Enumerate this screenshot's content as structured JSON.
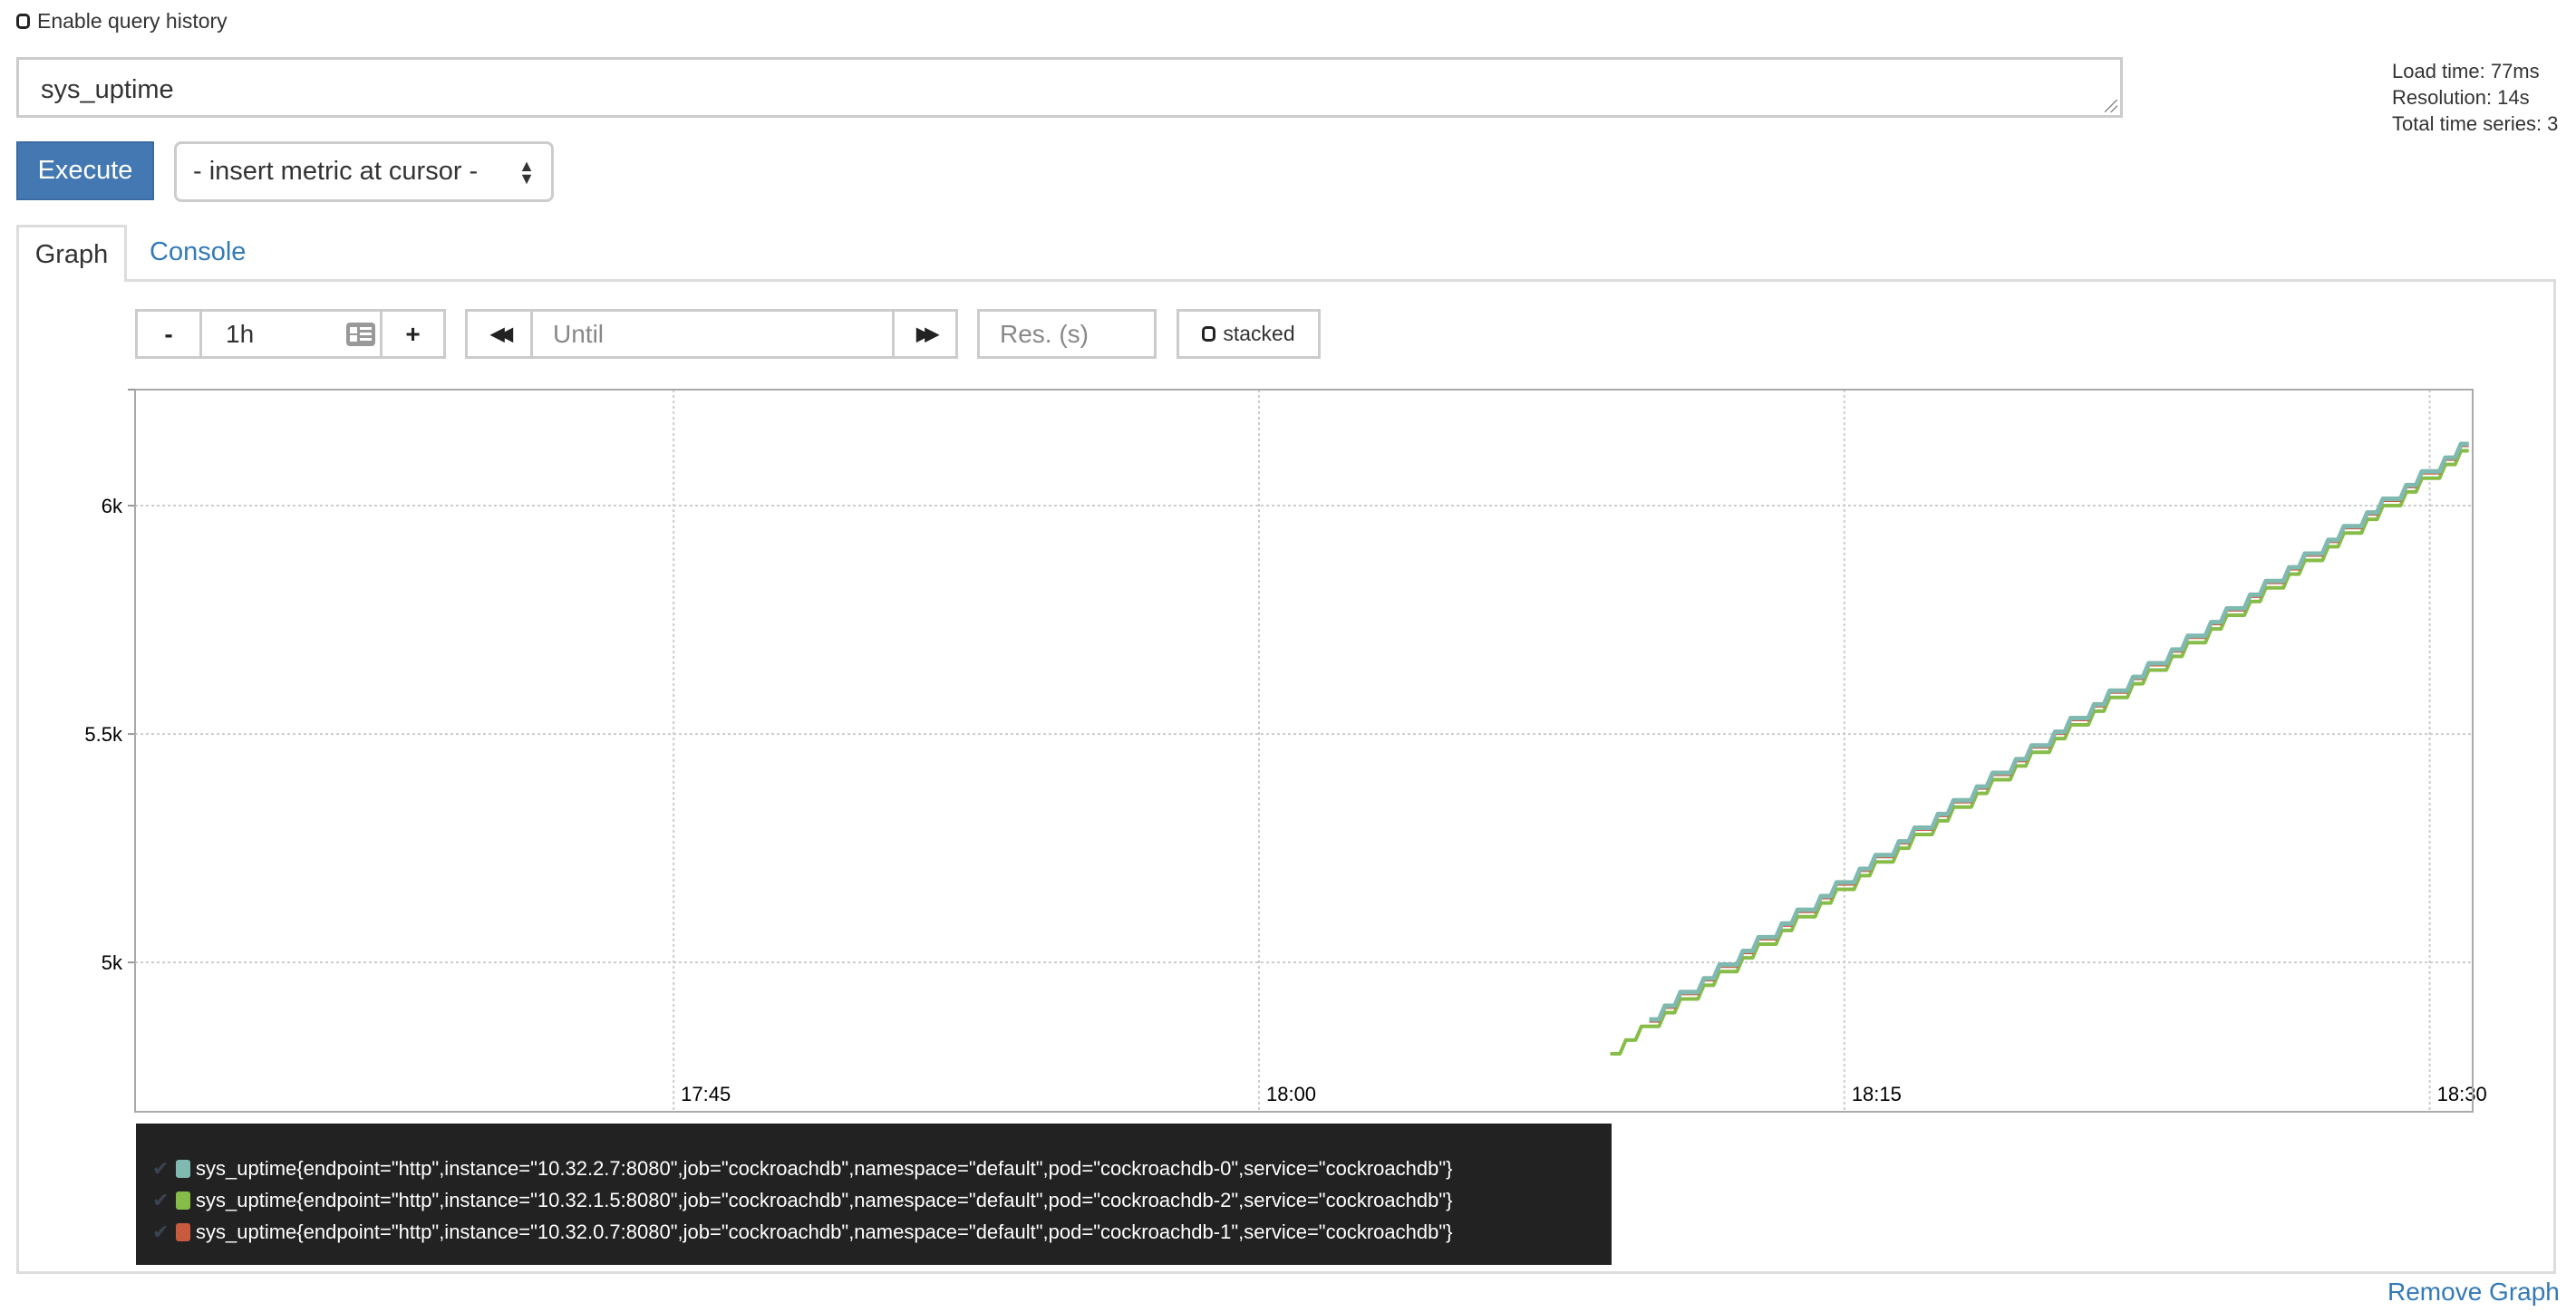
{
  "query_history": {
    "label": "Enable query history",
    "checked": false
  },
  "expression": {
    "value": "sys_uptime"
  },
  "stats": {
    "load_time": "Load time: 77ms",
    "resolution": "Resolution: 14s",
    "total_series": "Total time series: 3"
  },
  "execute_label": "Execute",
  "metric_select": {
    "selected": "- insert metric at cursor -"
  },
  "tabs": [
    {
      "label": "Graph",
      "active": true
    },
    {
      "label": "Console",
      "active": false
    }
  ],
  "controls": {
    "minus": "-",
    "range": "1h",
    "plus": "+",
    "back": "◀◀",
    "until_placeholder": "Until",
    "forward": "▶▶",
    "res_placeholder": "Res. (s)",
    "stacked_label": "stacked"
  },
  "remove_graph": "Remove Graph",
  "chart_data": {
    "type": "line",
    "xlim": [
      "17:31",
      "18:31"
    ],
    "ylim": [
      4673,
      6254
    ],
    "x_ticks": [
      "17:45",
      "18:00",
      "18:15",
      "18:30"
    ],
    "y_ticks": [
      {
        "value": 5000,
        "label": "5k"
      },
      {
        "value": 5500,
        "label": "5.5k"
      },
      {
        "value": 6000,
        "label": "6k"
      }
    ],
    "grid": true,
    "legend_placement": "bottom",
    "series": [
      {
        "name": "sys_uptime{endpoint=\"http\",instance=\"10.32.2.7:8080\",job=\"cockroachdb\",namespace=\"default\",pod=\"cockroachdb-0\",service=\"cockroachdb\"}",
        "color": "#7fb9b0",
        "x": [
          "18:10",
          "18:11",
          "18:12",
          "18:13",
          "18:14",
          "18:15",
          "18:16",
          "18:17",
          "18:18",
          "18:19",
          "18:20",
          "18:21",
          "18:22",
          "18:23",
          "18:24",
          "18:25",
          "18:26",
          "18:27",
          "18:28",
          "18:29",
          "18:30",
          "18:31"
        ],
        "values": [
          4875,
          4935,
          4995,
          5055,
          5115,
          5175,
          5235,
          5295,
          5355,
          5415,
          5475,
          5535,
          5595,
          5655,
          5715,
          5775,
          5835,
          5895,
          5955,
          6015,
          6075,
          6135
        ]
      },
      {
        "name": "sys_uptime{endpoint=\"http\",instance=\"10.32.1.5:8080\",job=\"cockroachdb\",namespace=\"default\",pod=\"cockroachdb-2\",service=\"cockroachdb\"}",
        "color": "#86bd48",
        "x": [
          "18:09",
          "18:10",
          "18:11",
          "18:12",
          "18:13",
          "18:14",
          "18:15",
          "18:16",
          "18:17",
          "18:18",
          "18:19",
          "18:20",
          "18:21",
          "18:22",
          "18:23",
          "18:24",
          "18:25",
          "18:26",
          "18:27",
          "18:28",
          "18:29",
          "18:30",
          "18:31"
        ],
        "values": [
          4800,
          4860,
          4920,
          4980,
          5040,
          5100,
          5160,
          5220,
          5280,
          5340,
          5400,
          5460,
          5520,
          5580,
          5640,
          5700,
          5760,
          5820,
          5880,
          5940,
          6000,
          6060,
          6120
        ]
      },
      {
        "name": "sys_uptime{endpoint=\"http\",instance=\"10.32.0.7:8080\",job=\"cockroachdb\",namespace=\"default\",pod=\"cockroachdb-1\",service=\"cockroachdb\"}",
        "color": "#c85a3e",
        "x": [
          "18:10",
          "18:11",
          "18:12",
          "18:13",
          "18:14",
          "18:15",
          "18:16",
          "18:17",
          "18:18",
          "18:19",
          "18:20",
          "18:21",
          "18:22",
          "18:23",
          "18:24",
          "18:25",
          "18:26",
          "18:27",
          "18:28",
          "18:29",
          "18:30",
          "18:31"
        ],
        "values": [
          4872,
          4932,
          4992,
          5052,
          5112,
          5172,
          5232,
          5292,
          5352,
          5412,
          5472,
          5532,
          5592,
          5652,
          5712,
          5772,
          5832,
          5892,
          5952,
          6012,
          6072,
          6132
        ]
      }
    ]
  }
}
